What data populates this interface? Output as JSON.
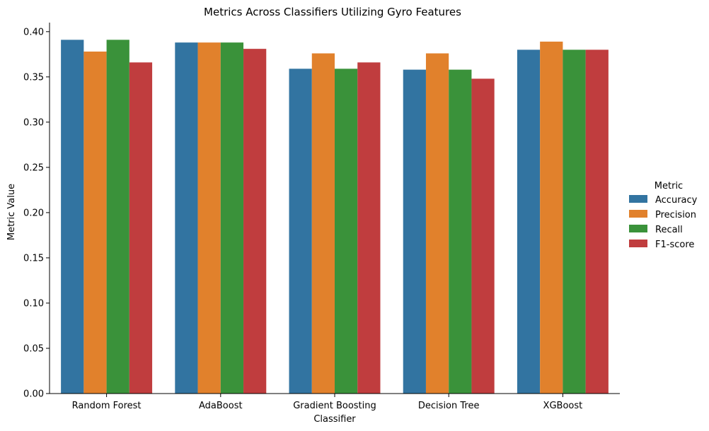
{
  "chart_data": {
    "type": "bar",
    "title": "Metrics Across Classifiers Utilizing Gyro Features",
    "xlabel": "Classifier",
    "ylabel": "Metric Value",
    "categories": [
      "Random Forest",
      "AdaBoost",
      "Gradient Boosting",
      "Decision Tree",
      "XGBoost"
    ],
    "series": [
      {
        "name": "Accuracy",
        "color": "#3274a1",
        "values": [
          0.391,
          0.388,
          0.359,
          0.358,
          0.38
        ]
      },
      {
        "name": "Precision",
        "color": "#e1812c",
        "values": [
          0.378,
          0.388,
          0.376,
          0.376,
          0.389
        ]
      },
      {
        "name": "Recall",
        "color": "#3a923a",
        "values": [
          0.391,
          0.388,
          0.359,
          0.358,
          0.38
        ]
      },
      {
        "name": "F1-score",
        "color": "#c03d3e",
        "values": [
          0.366,
          0.381,
          0.366,
          0.348,
          0.38
        ]
      }
    ],
    "ylim": [
      0,
      0.41
    ],
    "yticks": [
      "0.00",
      "0.05",
      "0.10",
      "0.15",
      "0.20",
      "0.25",
      "0.30",
      "0.35",
      "0.40"
    ],
    "legend_title": "Metric",
    "legend_position": "right",
    "grid": false
  }
}
